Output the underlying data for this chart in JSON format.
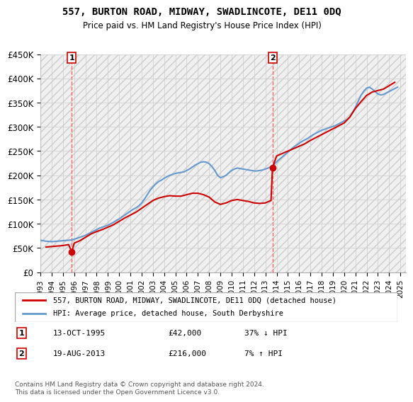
{
  "title": "557, BURTON ROAD, MIDWAY, SWADLINCOTE, DE11 0DQ",
  "subtitle": "Price paid vs. HM Land Registry's House Price Index (HPI)",
  "ylabel": "",
  "xlabel": "",
  "ylim": [
    0,
    450000
  ],
  "yticks": [
    0,
    50000,
    100000,
    150000,
    200000,
    250000,
    300000,
    350000,
    400000,
    450000
  ],
  "ytick_labels": [
    "£0",
    "£50K",
    "£100K",
    "£150K",
    "£200K",
    "£250K",
    "£300K",
    "£350K",
    "£400K",
    "£450K"
  ],
  "xlim_start": 1993.0,
  "xlim_end": 2025.5,
  "legend_line1": "557, BURTON ROAD, MIDWAY, SWADLINCOTE, DE11 0DQ (detached house)",
  "legend_line2": "HPI: Average price, detached house, South Derbyshire",
  "purchase1_date": "13-OCT-1995",
  "purchase1_price": 42000,
  "purchase1_pct": "37% ↓ HPI",
  "purchase1_x": 1995.79,
  "purchase2_date": "19-AUG-2013",
  "purchase2_price": 216000,
  "purchase2_pct": "7% ↑ HPI",
  "purchase2_x": 2013.63,
  "footer": "Contains HM Land Registry data © Crown copyright and database right 2024.\nThis data is licensed under the Open Government Licence v3.0.",
  "line_color_red": "#cc0000",
  "line_color_blue": "#6699cc",
  "vline_color": "#ff6666",
  "bg_hatch_color": "#e8e8e8",
  "hpi_data_x": [
    1993.0,
    1993.25,
    1993.5,
    1993.75,
    1994.0,
    1994.25,
    1994.5,
    1994.75,
    1995.0,
    1995.25,
    1995.5,
    1995.75,
    1996.0,
    1996.25,
    1996.5,
    1996.75,
    1997.0,
    1997.25,
    1997.5,
    1997.75,
    1998.0,
    1998.25,
    1998.5,
    1998.75,
    1999.0,
    1999.25,
    1999.5,
    1999.75,
    2000.0,
    2000.25,
    2000.5,
    2000.75,
    2001.0,
    2001.25,
    2001.5,
    2001.75,
    2002.0,
    2002.25,
    2002.5,
    2002.75,
    2003.0,
    2003.25,
    2003.5,
    2003.75,
    2004.0,
    2004.25,
    2004.5,
    2004.75,
    2005.0,
    2005.25,
    2005.5,
    2005.75,
    2006.0,
    2006.25,
    2006.5,
    2006.75,
    2007.0,
    2007.25,
    2007.5,
    2007.75,
    2008.0,
    2008.25,
    2008.5,
    2008.75,
    2009.0,
    2009.25,
    2009.5,
    2009.75,
    2010.0,
    2010.25,
    2010.5,
    2010.75,
    2011.0,
    2011.25,
    2011.5,
    2011.75,
    2012.0,
    2012.25,
    2012.5,
    2012.75,
    2013.0,
    2013.25,
    2013.5,
    2013.75,
    2014.0,
    2014.25,
    2014.5,
    2014.75,
    2015.0,
    2015.25,
    2015.5,
    2015.75,
    2016.0,
    2016.25,
    2016.5,
    2016.75,
    2017.0,
    2017.25,
    2017.5,
    2017.75,
    2018.0,
    2018.25,
    2018.5,
    2018.75,
    2019.0,
    2019.25,
    2019.5,
    2019.75,
    2020.0,
    2020.25,
    2020.5,
    2020.75,
    2021.0,
    2021.25,
    2021.5,
    2021.75,
    2022.0,
    2022.25,
    2022.5,
    2022.75,
    2023.0,
    2023.25,
    2023.5,
    2023.75,
    2024.0,
    2024.25,
    2024.5,
    2024.75
  ],
  "hpi_data_y": [
    66000,
    65000,
    64000,
    63500,
    63000,
    63500,
    64000,
    64500,
    65000,
    65500,
    66000,
    66500,
    68000,
    70000,
    72000,
    74000,
    76000,
    79000,
    82000,
    85000,
    88000,
    91000,
    93000,
    95000,
    97000,
    100000,
    103000,
    107000,
    110000,
    114000,
    118000,
    122000,
    126000,
    130000,
    133000,
    137000,
    143000,
    151000,
    160000,
    169000,
    176000,
    182000,
    187000,
    190000,
    194000,
    197000,
    200000,
    202000,
    204000,
    205000,
    206000,
    207000,
    210000,
    213000,
    217000,
    221000,
    224000,
    227000,
    228000,
    227000,
    224000,
    218000,
    210000,
    200000,
    195000,
    197000,
    200000,
    205000,
    210000,
    213000,
    215000,
    214000,
    213000,
    212000,
    211000,
    210000,
    209000,
    209000,
    210000,
    211000,
    213000,
    215000,
    218000,
    222000,
    228000,
    233000,
    238000,
    243000,
    248000,
    253000,
    258000,
    262000,
    266000,
    270000,
    273000,
    276000,
    280000,
    284000,
    287000,
    290000,
    293000,
    295000,
    297000,
    299000,
    301000,
    303000,
    306000,
    309000,
    312000,
    315000,
    320000,
    330000,
    340000,
    353000,
    365000,
    374000,
    380000,
    382000,
    378000,
    373000,
    368000,
    366000,
    367000,
    370000,
    373000,
    376000,
    379000,
    382000
  ],
  "price_data_x": [
    1993.5,
    1994.0,
    1994.5,
    1995.0,
    1995.25,
    1995.5,
    1995.79,
    1996.0,
    1996.5,
    1997.0,
    1997.5,
    1998.0,
    1998.5,
    1999.0,
    1999.5,
    2000.0,
    2000.5,
    2001.0,
    2001.5,
    2002.0,
    2002.5,
    2003.0,
    2003.5,
    2004.0,
    2004.5,
    2005.0,
    2005.5,
    2006.0,
    2006.5,
    2007.0,
    2007.5,
    2008.0,
    2008.5,
    2009.0,
    2009.5,
    2010.0,
    2010.5,
    2011.0,
    2011.5,
    2012.0,
    2012.5,
    2013.0,
    2013.5,
    2013.63,
    2014.0,
    2014.5,
    2015.0,
    2015.5,
    2016.0,
    2016.5,
    2017.0,
    2017.5,
    2018.0,
    2018.5,
    2019.0,
    2019.5,
    2020.0,
    2020.5,
    2021.0,
    2021.5,
    2022.0,
    2022.5,
    2023.0,
    2023.5,
    2024.0,
    2024.5
  ],
  "price_data_y": [
    52000,
    53000,
    54000,
    55000,
    56000,
    57000,
    42000,
    60000,
    65000,
    72000,
    79000,
    84000,
    88000,
    93000,
    98000,
    105000,
    112000,
    118000,
    124000,
    132000,
    140000,
    148000,
    153000,
    156000,
    158000,
    157000,
    157000,
    160000,
    163000,
    163000,
    160000,
    155000,
    145000,
    140000,
    143000,
    148000,
    150000,
    148000,
    146000,
    143000,
    142000,
    143000,
    148000,
    216000,
    240000,
    245000,
    250000,
    255000,
    260000,
    265000,
    272000,
    278000,
    284000,
    290000,
    296000,
    302000,
    308000,
    320000,
    338000,
    352000,
    365000,
    372000,
    375000,
    378000,
    385000,
    392000
  ]
}
